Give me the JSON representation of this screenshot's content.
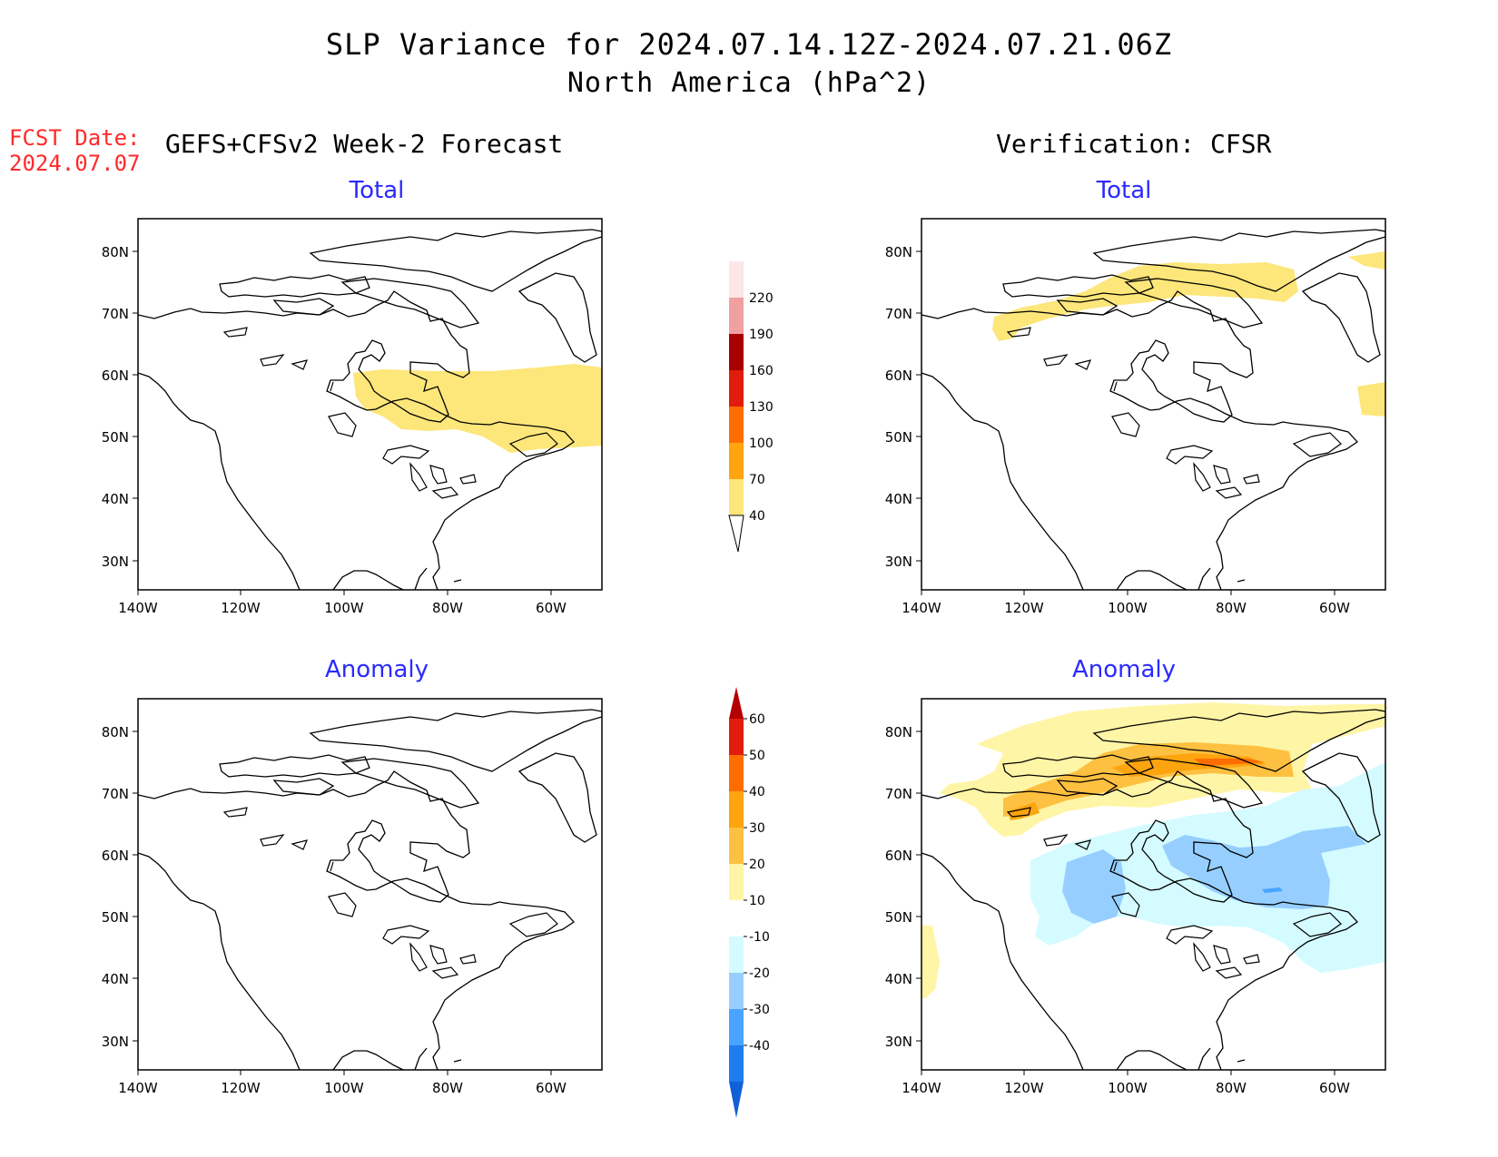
{
  "header": {
    "title_line1": "SLP Variance for 2024.07.14.12Z-2024.07.21.06Z",
    "title_line2": "North America (hPa^2)",
    "fcst_label": "FCST Date:",
    "fcst_date": "2024.07.07",
    "left_column_title": "GEFS+CFSv2 Week-2 Forecast",
    "right_column_title": "Verification: CFSR"
  },
  "panels": [
    {
      "id": "fcst-total",
      "title": "Total"
    },
    {
      "id": "verif-total",
      "title": "Total"
    },
    {
      "id": "fcst-anomaly",
      "title": "Anomaly"
    },
    {
      "id": "verif-anomaly",
      "title": "Anomaly"
    }
  ],
  "axes": {
    "lon_labels": [
      "140W",
      "120W",
      "100W",
      "80W",
      "60W"
    ],
    "lat_labels": [
      "80N",
      "70N",
      "60N",
      "50N",
      "40N",
      "30N"
    ]
  },
  "colorbars": {
    "total": {
      "levels": [
        "40",
        "70",
        "100",
        "130",
        "160",
        "190",
        "220"
      ],
      "colors": [
        "#fde67a",
        "#fda40e",
        "#ff6d00",
        "#e01c0c",
        "#a80000",
        "#f0a0a0",
        "#fde6e6"
      ]
    },
    "anomaly": {
      "levels": [
        "60",
        "50",
        "40",
        "30",
        "20",
        "10",
        "-10",
        "-20",
        "-30",
        "-40"
      ],
      "colors": [
        "#b40000",
        "#e01c0c",
        "#ff6d00",
        "#fda40e",
        "#fdc040",
        "#fff5a6",
        "#ffffff",
        "#d4fbff",
        "#96cfff",
        "#4aa3ff",
        "#1e7cef",
        "#1060d8"
      ]
    }
  },
  "colors": {
    "fcst_date": "#ff2a2a",
    "panel_title": "#2a2aff"
  }
}
